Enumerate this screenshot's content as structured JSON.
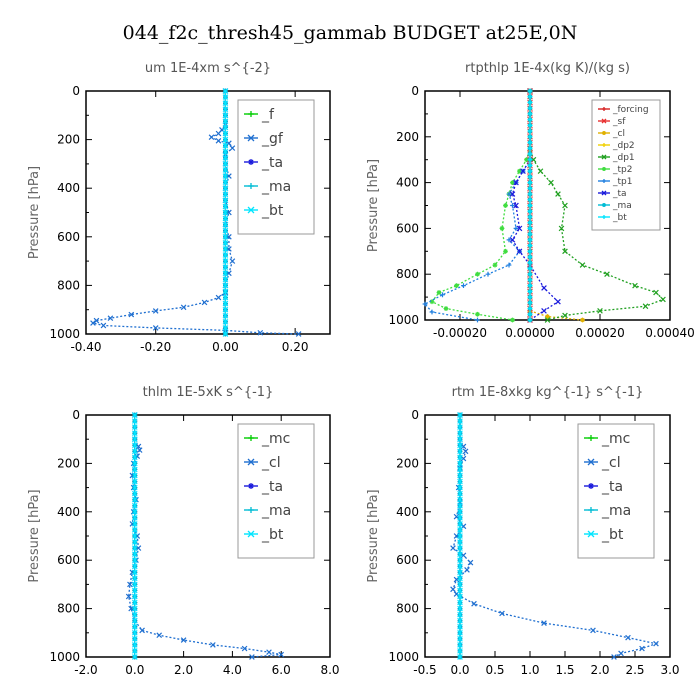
{
  "figure_title": "044_f2c_thresh45_gammab  BUDGET at25E,0N",
  "colors": {
    "f": "#00cc00",
    "gf": "#1f6fd0",
    "ta": "#1a1adc",
    "ma": "#00bcd4",
    "bt": "#00e5ff",
    "mc": "#00cc00",
    "cl": "#1f6fd0",
    "forcing": "#d62020",
    "sf": "#e83030",
    "cl_small": "#e0b000",
    "dp2": "#f0d000",
    "dp1": "#20a020",
    "tp2": "#40dd40",
    "tp1": "#2080e0"
  },
  "chart_data": [
    {
      "type": "line",
      "title": "um   1E-4xm  s^{-2}",
      "ylabel": "Pressure [hPa]",
      "xlim": [
        -0.4,
        0.3
      ],
      "ylim": [
        1000,
        0
      ],
      "xticks": [
        -0.4,
        -0.2,
        0.0,
        0.2
      ],
      "xtick_labels": [
        "-0.40",
        "-0.20",
        "0.00",
        "0.20"
      ],
      "yticks": [
        0,
        200,
        400,
        600,
        800,
        1000
      ],
      "legend_pos": "top-right",
      "legend_small": false,
      "series": [
        {
          "name": "_f",
          "color_key": "f",
          "x": [
            0.0,
            0.0
          ],
          "y": [
            0,
            1000
          ]
        },
        {
          "name": "_gf",
          "color_key": "gf",
          "x": [
            0.0,
            0.0,
            0.0,
            -0.01,
            -0.02,
            -0.04,
            -0.02,
            0.01,
            0.02,
            0.0,
            0.0,
            0.01,
            0.0,
            0.0,
            0.01,
            0.0,
            0.01,
            0.01,
            0.02,
            0.01,
            0.0,
            0.0,
            -0.02,
            -0.06,
            -0.12,
            -0.2,
            -0.27,
            -0.33,
            -0.37,
            -0.38,
            -0.35,
            -0.2,
            0.0,
            0.1,
            0.21
          ],
          "y": [
            0,
            100,
            140,
            160,
            175,
            190,
            205,
            215,
            235,
            260,
            300,
            350,
            400,
            450,
            500,
            550,
            600,
            650,
            700,
            750,
            800,
            830,
            850,
            870,
            890,
            905,
            920,
            935,
            945,
            955,
            965,
            975,
            985,
            995,
            1000
          ]
        },
        {
          "name": "_ta",
          "color_key": "ta",
          "x": [
            0.0,
            0.0
          ],
          "y": [
            0,
            1000
          ]
        },
        {
          "name": "_ma",
          "color_key": "ma",
          "x": [
            0.0,
            0.0
          ],
          "y": [
            0,
            1000
          ]
        },
        {
          "name": "_bt",
          "color_key": "bt",
          "x": [
            0.0,
            0.0
          ],
          "y": [
            0,
            1000
          ]
        }
      ]
    },
    {
      "type": "line",
      "title": "rtpthlp   1E-4x(kg K)/(kg s)",
      "ylabel": "Pressure [hPa]",
      "xlim": [
        -0.0003,
        0.0004
      ],
      "ylim": [
        1000,
        0
      ],
      "xticks": [
        -0.0002,
        0.0,
        0.0002,
        0.0004
      ],
      "xtick_labels": [
        "-0.00020",
        "0.00000",
        "0.00020",
        "0.00040"
      ],
      "yticks": [
        0,
        200,
        400,
        600,
        800,
        1000
      ],
      "legend_pos": "top-right",
      "legend_small": true,
      "series": [
        {
          "name": "_forcing",
          "color_key": "forcing",
          "x": [
            0.0,
            0.0
          ],
          "y": [
            0,
            1000
          ]
        },
        {
          "name": "_sf",
          "color_key": "sf",
          "x": [
            0.0,
            0.0
          ],
          "y": [
            0,
            1000
          ]
        },
        {
          "name": "_cl",
          "color_key": "cl_small",
          "x": [
            0.0,
            0.0,
            5e-05,
            0.00015
          ],
          "y": [
            0,
            960,
            985,
            1000
          ]
        },
        {
          "name": "_dp2",
          "color_key": "dp2",
          "x": [
            0.0,
            0.0
          ],
          "y": [
            0,
            1000
          ]
        },
        {
          "name": "_dp1",
          "color_key": "dp1",
          "x": [
            0.0,
            0.0,
            1e-05,
            3e-05,
            6e-05,
            8e-05,
            0.0001,
            9e-05,
            0.0001,
            0.00015,
            0.00022,
            0.0003,
            0.00036,
            0.00038,
            0.00033,
            0.0002,
            0.0001,
            5e-05
          ],
          "y": [
            0,
            250,
            300,
            350,
            400,
            450,
            500,
            600,
            700,
            760,
            800,
            850,
            880,
            910,
            940,
            960,
            980,
            1000
          ]
        },
        {
          "name": "_tp2",
          "color_key": "tp2",
          "x": [
            0.0,
            0.0,
            -1e-05,
            -3e-05,
            -5e-05,
            -6e-05,
            -7e-05,
            -8e-05,
            -7e-05,
            -0.0001,
            -0.00015,
            -0.00021,
            -0.00026,
            -0.00028,
            -0.00024,
            -0.00015,
            -5e-05
          ],
          "y": [
            0,
            250,
            300,
            350,
            400,
            450,
            500,
            600,
            700,
            760,
            800,
            850,
            880,
            920,
            950,
            975,
            1000
          ]
        },
        {
          "name": "_tp1",
          "color_key": "tp1",
          "x": [
            0.0,
            0.0,
            -2e-05,
            -4e-05,
            -6e-05,
            -5e-05,
            -4e-05,
            -6e-05,
            -3e-05,
            -6e-05,
            -0.00012,
            -0.00019,
            -0.00025,
            -0.0003,
            -0.00028,
            -0.00015
          ],
          "y": [
            0,
            300,
            350,
            400,
            450,
            500,
            600,
            650,
            700,
            760,
            800,
            850,
            890,
            930,
            965,
            1000
          ]
        },
        {
          "name": "_ta",
          "color_key": "ta",
          "x": [
            0.0,
            0.0,
            -2e-05,
            -4e-05,
            -5e-05,
            -4e-05,
            -3e-05,
            -5e-05,
            -3e-05,
            0.0,
            4e-05,
            8e-05,
            4e-05,
            0.0
          ],
          "y": [
            0,
            300,
            350,
            400,
            450,
            500,
            600,
            650,
            700,
            760,
            860,
            920,
            960,
            1000
          ]
        },
        {
          "name": "_ma",
          "color_key": "ma",
          "x": [
            0.0,
            0.0
          ],
          "y": [
            0,
            1000
          ]
        },
        {
          "name": "_bt",
          "color_key": "bt",
          "x": [
            0.0,
            0.0
          ],
          "y": [
            0,
            1000
          ]
        }
      ]
    },
    {
      "type": "line",
      "title": "thlm   1E-5xK  s^{-1}",
      "ylabel": "Pressure [hPa]",
      "xlim": [
        -2.0,
        8.0
      ],
      "ylim": [
        1000,
        0
      ],
      "xticks": [
        -2,
        0,
        2,
        4,
        6,
        8
      ],
      "xtick_labels": [
        "-2.0",
        "0.0",
        "2.0",
        "4.0",
        "6.0",
        "8.0"
      ],
      "yticks": [
        0,
        200,
        400,
        600,
        800,
        1000
      ],
      "legend_pos": "top-right",
      "legend_small": false,
      "series": [
        {
          "name": "_mc",
          "color_key": "mc",
          "x": [
            0.0,
            0.0
          ],
          "y": [
            0,
            1000
          ]
        },
        {
          "name": "_cl",
          "color_key": "cl",
          "x": [
            0.0,
            0.0,
            0.15,
            0.2,
            0.1,
            -0.05,
            -0.1,
            -0.05,
            0.05,
            -0.05,
            -0.1,
            0.1,
            0.15,
            0.05,
            -0.1,
            -0.2,
            -0.25,
            -0.15,
            0.0,
            0.3,
            1.0,
            2.0,
            3.2,
            4.5,
            5.5,
            6.0,
            4.8
          ],
          "y": [
            0,
            100,
            130,
            145,
            170,
            200,
            250,
            300,
            350,
            400,
            450,
            500,
            550,
            600,
            650,
            700,
            750,
            800,
            850,
            890,
            910,
            930,
            950,
            965,
            980,
            990,
            1000
          ]
        },
        {
          "name": "_ta",
          "color_key": "ta",
          "x": [
            0.0,
            0.0
          ],
          "y": [
            0,
            1000
          ]
        },
        {
          "name": "_ma",
          "color_key": "ma",
          "x": [
            0.0,
            0.0
          ],
          "y": [
            0,
            1000
          ]
        },
        {
          "name": "_bt",
          "color_key": "bt",
          "x": [
            0.0,
            0.0
          ],
          "y": [
            0,
            1000
          ]
        }
      ]
    },
    {
      "type": "line",
      "title": "rtm   1E-8xkg  kg^{-1}  s^{-1}",
      "ylabel": "Pressure [hPa]",
      "xlim": [
        -0.5,
        3.0
      ],
      "ylim": [
        1000,
        0
      ],
      "xticks": [
        -0.5,
        0.0,
        0.5,
        1.0,
        1.5,
        2.0,
        2.5,
        3.0
      ],
      "xtick_labels": [
        "-0.5",
        "0.0",
        "0.5",
        "1.0",
        "1.5",
        "2.0",
        "2.5",
        "3.0"
      ],
      "yticks": [
        0,
        200,
        400,
        600,
        800,
        1000
      ],
      "legend_pos": "top-right",
      "legend_small": false,
      "series": [
        {
          "name": "_mc",
          "color_key": "mc",
          "x": [
            0.0,
            0.0
          ],
          "y": [
            0,
            1000
          ]
        },
        {
          "name": "_cl",
          "color_key": "cl",
          "x": [
            0.0,
            0.0,
            0.05,
            0.08,
            0.05,
            0.0,
            -0.02,
            0.0,
            -0.05,
            0.05,
            -0.05,
            -0.1,
            0.05,
            0.15,
            0.1,
            -0.05,
            -0.1,
            -0.05,
            0.2,
            0.6,
            1.2,
            1.9,
            2.4,
            2.8,
            2.6,
            2.3,
            2.2
          ],
          "y": [
            0,
            100,
            130,
            150,
            180,
            220,
            300,
            360,
            420,
            460,
            500,
            550,
            580,
            610,
            640,
            680,
            720,
            740,
            780,
            820,
            860,
            890,
            920,
            945,
            965,
            985,
            1000
          ]
        },
        {
          "name": "_ta",
          "color_key": "ta",
          "x": [
            0.0,
            0.0
          ],
          "y": [
            0,
            1000
          ]
        },
        {
          "name": "_ma",
          "color_key": "ma",
          "x": [
            0.0,
            0.0
          ],
          "y": [
            0,
            1000
          ]
        },
        {
          "name": "_bt",
          "color_key": "bt",
          "x": [
            0.0,
            0.0
          ],
          "y": [
            0,
            1000
          ]
        }
      ]
    }
  ]
}
